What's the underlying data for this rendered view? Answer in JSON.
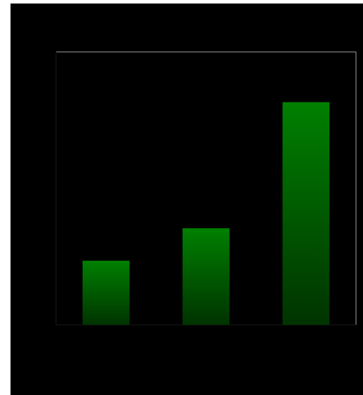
{
  "colors": {
    "background": "#000000",
    "plot_frame": "#a0a0a0",
    "bar_top": "#008000",
    "bar_bottom": "#003300"
  },
  "chart_data": {
    "type": "bar",
    "categories": [
      "",
      "",
      ""
    ],
    "values": [
      23.5,
      35.4,
      81.6
    ],
    "ylim": [
      0,
      100
    ],
    "title": "",
    "xlabel": "",
    "ylabel": "",
    "grid": false,
    "legend": "none",
    "bar_fill": "vertical-gradient"
  }
}
